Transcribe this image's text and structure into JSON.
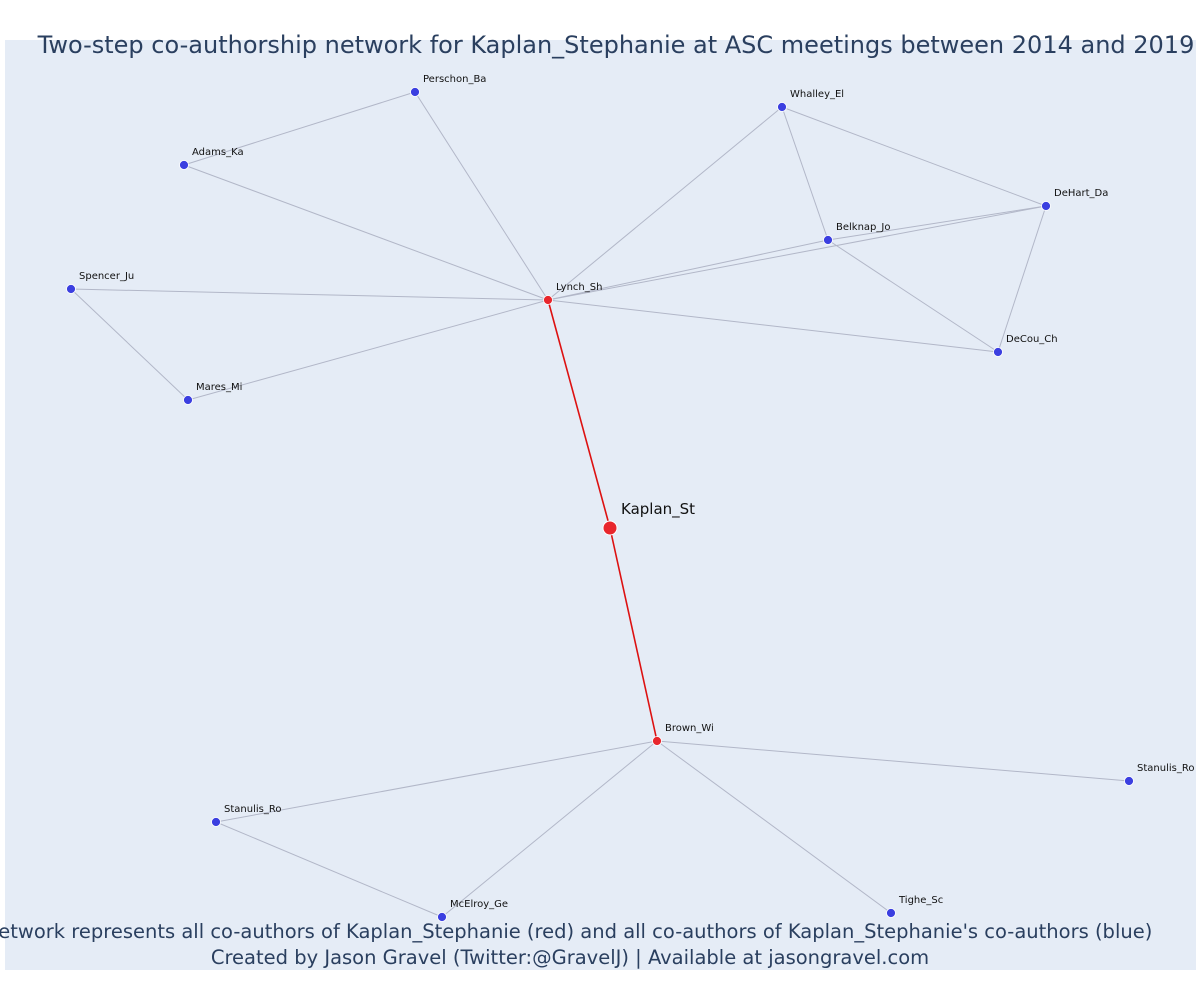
{
  "title": "Two-step co-authorship network for Kaplan_Stephanie at ASC meetings between 2014 and 2019",
  "caption": {
    "line1": "Network represents all co-authors of Kaplan_Stephanie (red) and all co-authors of Kaplan_Stephanie's co-authors (blue)",
    "line2": "Created by Jason Gravel (Twitter:@GravelJ) | Available at jasongravel.com"
  },
  "colors": {
    "background": "#e5ecf6",
    "red_node": "#e8262c",
    "blue_node": "#3b3fe0",
    "red_edge": "#dd1111",
    "gray_edge": "#b2b7c8",
    "text": "#2a3f5f"
  },
  "nodes": [
    {
      "id": "kaplan",
      "label": "Kaplan_St",
      "group": "red",
      "major": true
    },
    {
      "id": "lynch",
      "label": "Lynch_Sh",
      "group": "red"
    },
    {
      "id": "brown",
      "label": "Brown_Wi",
      "group": "red"
    },
    {
      "id": "perschon",
      "label": "Perschon_Ba",
      "group": "blue"
    },
    {
      "id": "adams",
      "label": "Adams_Ka",
      "group": "blue"
    },
    {
      "id": "spencer",
      "label": "Spencer_Ju",
      "group": "blue"
    },
    {
      "id": "mares",
      "label": "Mares_Mi",
      "group": "blue"
    },
    {
      "id": "whalley",
      "label": "Whalley_El",
      "group": "blue"
    },
    {
      "id": "dehart",
      "label": "DeHart_Da",
      "group": "blue"
    },
    {
      "id": "belknap",
      "label": "Belknap_Jo",
      "group": "blue"
    },
    {
      "id": "decou",
      "label": "DeCou_Ch",
      "group": "blue"
    },
    {
      "id": "stanulis1",
      "label": "Stanulis_Ro",
      "group": "blue"
    },
    {
      "id": "stanulis2",
      "label": "Stanulis_Ro",
      "group": "blue"
    },
    {
      "id": "mcelroy",
      "label": "McElroy_Ge",
      "group": "blue"
    },
    {
      "id": "tighe",
      "label": "Tighe_Sc",
      "group": "blue"
    }
  ],
  "edges": [
    {
      "source": "kaplan",
      "target": "lynch",
      "type": "red"
    },
    {
      "source": "kaplan",
      "target": "brown",
      "type": "red"
    },
    {
      "source": "lynch",
      "target": "perschon",
      "type": "gray"
    },
    {
      "source": "lynch",
      "target": "adams",
      "type": "gray"
    },
    {
      "source": "lynch",
      "target": "spencer",
      "type": "gray"
    },
    {
      "source": "lynch",
      "target": "mares",
      "type": "gray"
    },
    {
      "source": "lynch",
      "target": "whalley",
      "type": "gray"
    },
    {
      "source": "lynch",
      "target": "belknap",
      "type": "gray"
    },
    {
      "source": "lynch",
      "target": "dehart",
      "type": "gray"
    },
    {
      "source": "lynch",
      "target": "decou",
      "type": "gray"
    },
    {
      "source": "adams",
      "target": "perschon",
      "type": "gray"
    },
    {
      "source": "spencer",
      "target": "mares",
      "type": "gray"
    },
    {
      "source": "whalley",
      "target": "belknap",
      "type": "gray"
    },
    {
      "source": "whalley",
      "target": "dehart",
      "type": "gray"
    },
    {
      "source": "belknap",
      "target": "dehart",
      "type": "gray"
    },
    {
      "source": "belknap",
      "target": "decou",
      "type": "gray"
    },
    {
      "source": "dehart",
      "target": "decou",
      "type": "gray"
    },
    {
      "source": "brown",
      "target": "stanulis1",
      "type": "gray"
    },
    {
      "source": "brown",
      "target": "stanulis2",
      "type": "gray"
    },
    {
      "source": "brown",
      "target": "mcelroy",
      "type": "gray"
    },
    {
      "source": "brown",
      "target": "tighe",
      "type": "gray"
    },
    {
      "source": "stanulis1",
      "target": "mcelroy",
      "type": "gray"
    }
  ]
}
